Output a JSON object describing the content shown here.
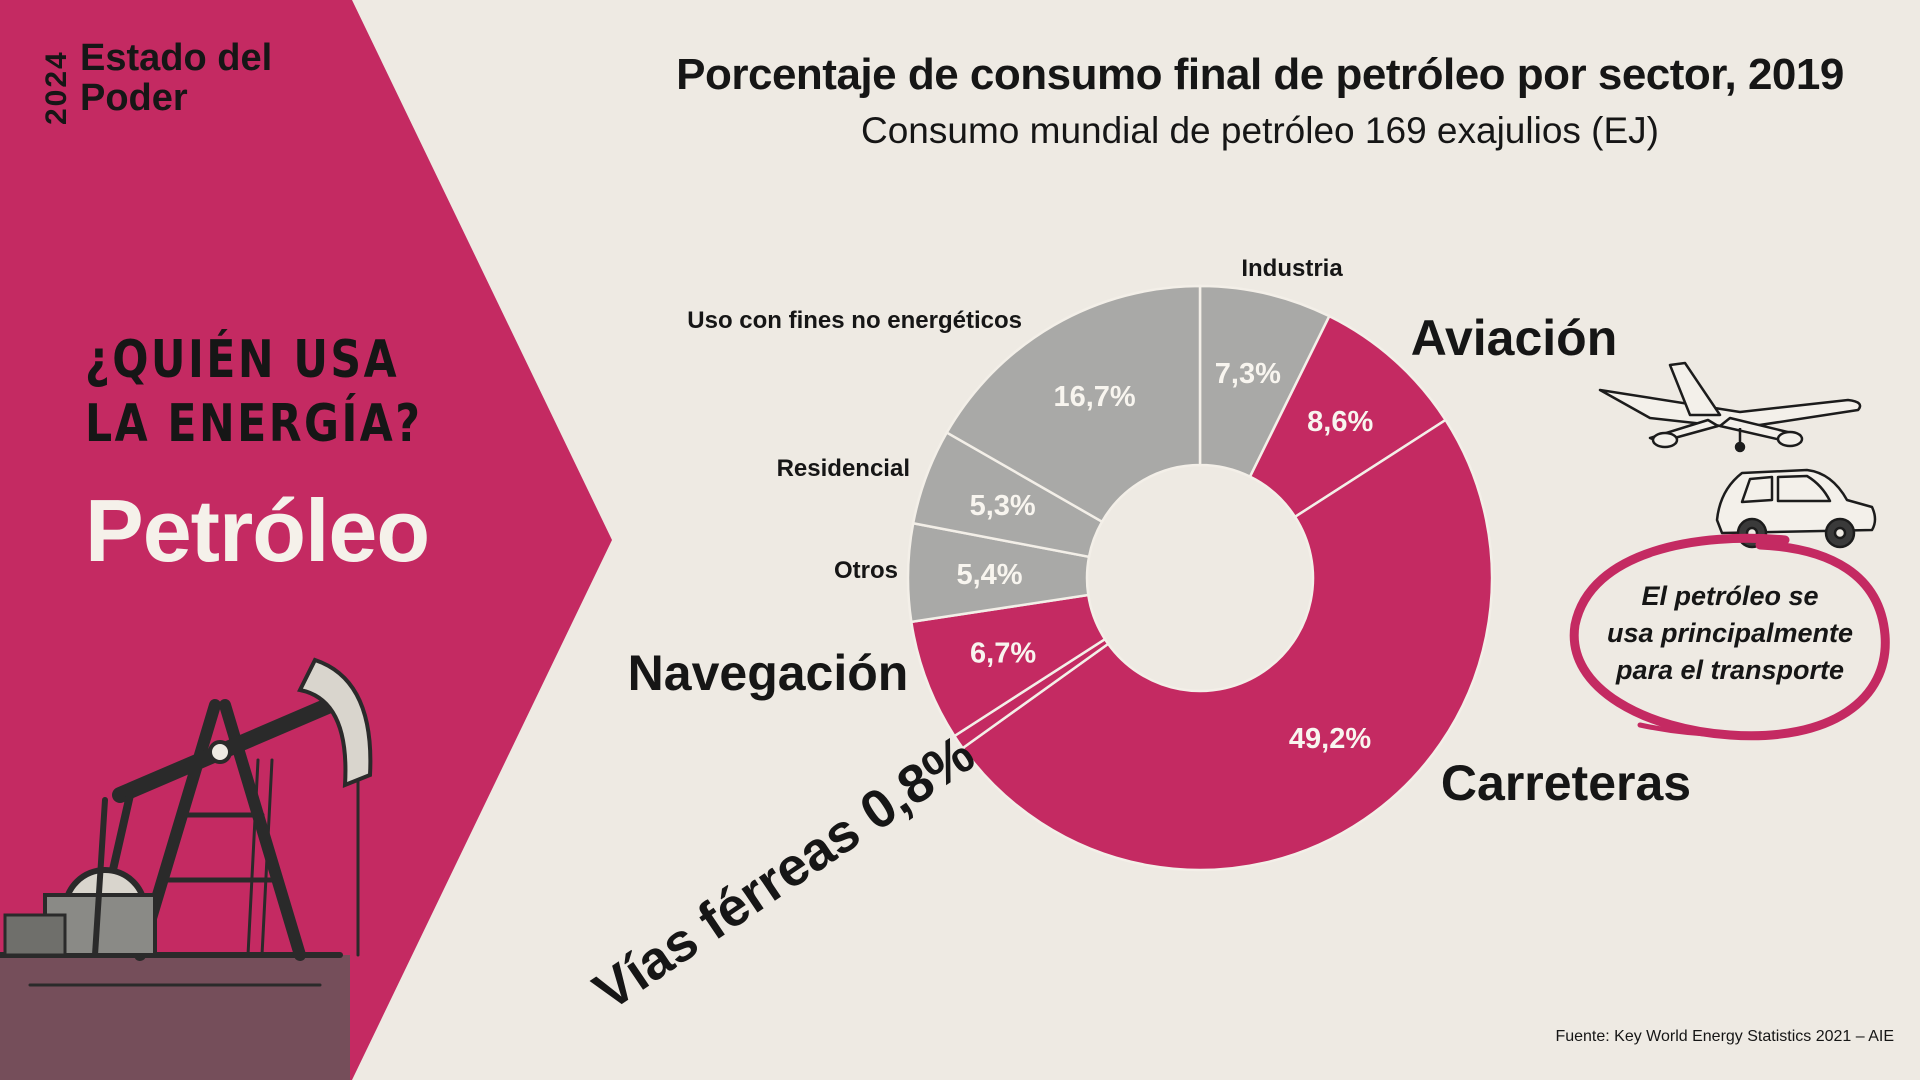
{
  "brand": {
    "year": "2024",
    "name_line1": "Estado del",
    "name_line2": "Poder"
  },
  "headline": {
    "line1": "¿QUIÉN USA",
    "line2": "LA ENERGÍA?",
    "subject": "Petróleo"
  },
  "colors": {
    "accent": "#c42a62",
    "grey": "#a9a9a7",
    "background": "#eeeae3"
  },
  "icons": [
    "oil-pump-icon",
    "airplane-icon",
    "car-icon"
  ],
  "chart_data": {
    "type": "pie",
    "variant": "donut",
    "title": "Porcentaje de consumo final de petróleo por sector, 2019",
    "subtitle": "Consumo mundial de petróleo 169 exajulios (EJ)",
    "unit": "%",
    "slices": [
      {
        "label": "Industria",
        "value": 7.3,
        "value_label": "7,3%",
        "group": "grey"
      },
      {
        "label": "Aviación",
        "value": 8.6,
        "value_label": "8,6%",
        "group": "transport"
      },
      {
        "label": "Carreteras",
        "value": 49.2,
        "value_label": "49,2%",
        "group": "transport"
      },
      {
        "label": "Vías férreas",
        "value": 0.8,
        "value_label": "0,8%",
        "group": "transport"
      },
      {
        "label": "Navegación",
        "value": 6.7,
        "value_label": "6,7%",
        "group": "transport"
      },
      {
        "label": "Otros",
        "value": 5.4,
        "value_label": "5,4%",
        "group": "grey"
      },
      {
        "label": "Residencial",
        "value": 5.3,
        "value_label": "5,3%",
        "group": "grey"
      },
      {
        "label": "Uso con fines no energéticos",
        "value": 16.7,
        "value_label": "16,7%",
        "group": "grey"
      }
    ],
    "rail_label": "Vías férreas 0,8%",
    "annotation": "El petróleo se usa principalmente para el transporte",
    "source": "Fuente: Key World Energy Statistics 2021 – AIE"
  },
  "note": {
    "line1": "El petróleo se",
    "line2": "usa principalmente",
    "line3": "para el transporte"
  }
}
